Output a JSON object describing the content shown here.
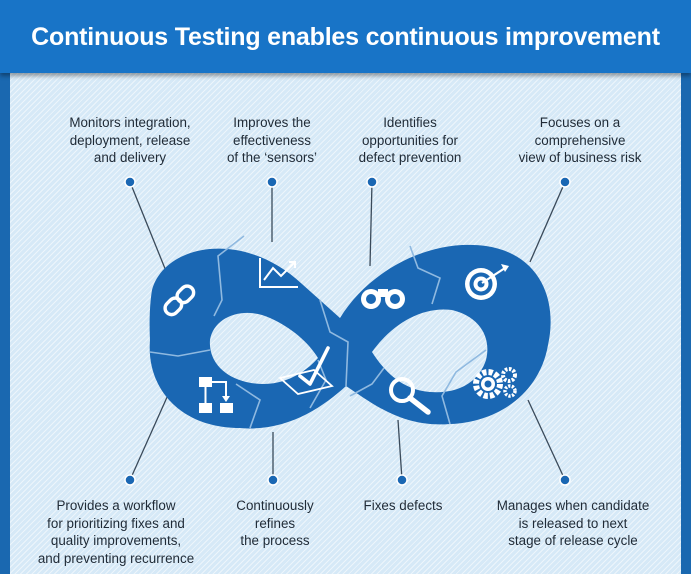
{
  "title": "Continuous Testing enables continuous improvement",
  "colors": {
    "banner": "#1874c7",
    "loop": "#1a67b3",
    "seam": "#8fb9e0",
    "dot": "#1a67b3",
    "text": "#1f2a36"
  },
  "top_labels": [
    {
      "text": "Monitors integration,\ndeployment, release\nand delivery",
      "icon": "link-icon"
    },
    {
      "text": "Improves the\neffectiveness\nof the ‘sensors’",
      "icon": "chart-line-icon"
    },
    {
      "text": "Identifies\nopportunities for\ndefect prevention",
      "icon": "binoculars-icon"
    },
    {
      "text": "Focuses on a\ncomprehensive\nview of business risk",
      "icon": "target-icon"
    }
  ],
  "bottom_labels": [
    {
      "text": "Provides a workflow\nfor prioritizing fixes and\nquality improvements,\nand preventing recurrence",
      "icon": "workflow-icon"
    },
    {
      "text": "Continuously\nrefines\nthe process",
      "icon": "checkmark-icon"
    },
    {
      "text": "Fixes defects",
      "icon": "magnifier-icon"
    },
    {
      "text": "Manages when candidate\nis released to next\nstage of release cycle",
      "icon": "gears-icon"
    }
  ]
}
